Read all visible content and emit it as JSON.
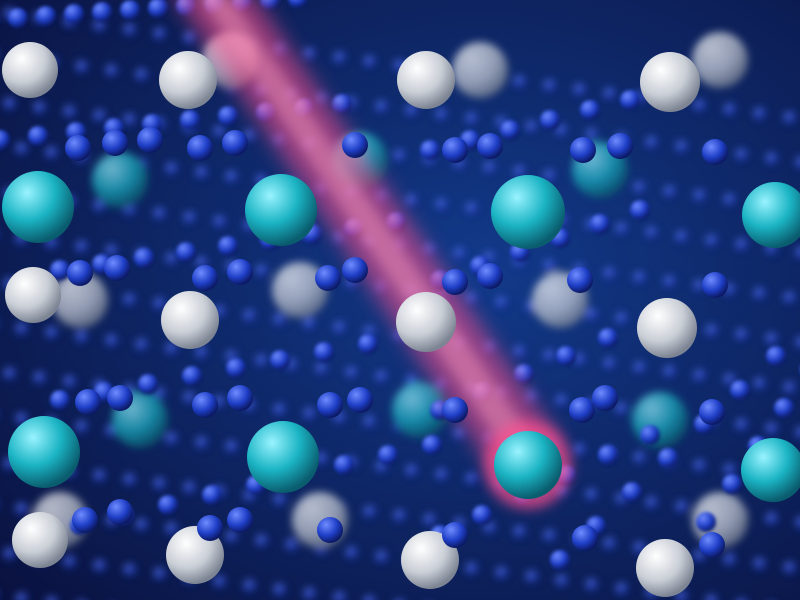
{
  "scene": {
    "subject": "crystal-lattice",
    "colors": {
      "background": "#0a1240",
      "background_glow": "#123a8a",
      "small_atom": "#1f3fc7",
      "small_atom_highlight": "#6f8cff",
      "teal_atom": "#1bb4c4",
      "teal_atom_highlight": "#9af3ff",
      "white_atom": "#c9ced6",
      "white_atom_highlight": "#ffffff",
      "beam": "#ff4f8e",
      "beam_glow": "#ff9cc0"
    },
    "icons": {
      "lattice": "atom-lattice-icon",
      "beam": "laser-beam-icon"
    }
  }
}
